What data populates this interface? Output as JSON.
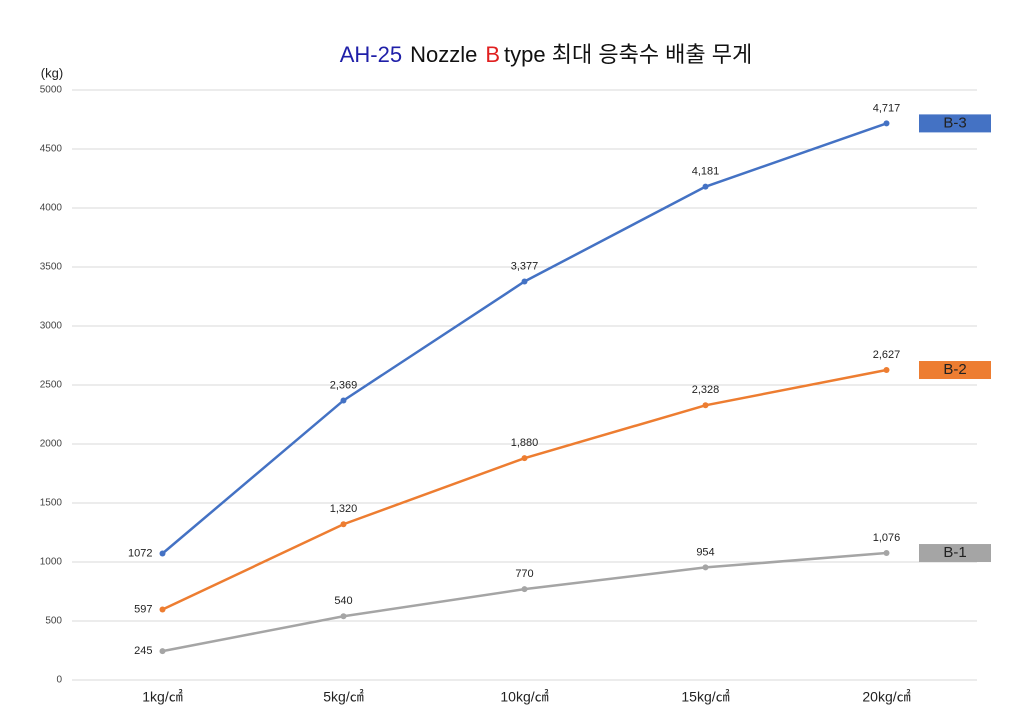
{
  "chart_data": {
    "type": "line",
    "title_parts": [
      {
        "text": "AH-25",
        "color": "#1f1fa8"
      },
      {
        "text": "Nozzle",
        "color": "#111111"
      },
      {
        "text": "B",
        "color": "#e02020"
      },
      {
        "text": "type 최대 응축수 배출 무게",
        "color": "#111111"
      }
    ],
    "y_label": "(kg)",
    "categories": [
      "1kg/㎠",
      "5kg/㎠",
      "10kg/㎠",
      "15kg/㎠",
      "20kg/㎠"
    ],
    "series": [
      {
        "name": "B-3",
        "color": "#4472c4",
        "values": [
          1072,
          2369,
          3377,
          4181,
          4717
        ],
        "value_labels": [
          "1072",
          "2,369",
          "3,377",
          "4,181",
          "4,717"
        ]
      },
      {
        "name": "B-2",
        "color": "#ed7d31",
        "values": [
          597,
          1320,
          1880,
          2328,
          2627
        ],
        "value_labels": [
          "597",
          "1,320",
          "1,880",
          "2,328",
          "2,627"
        ]
      },
      {
        "name": "B-1",
        "color": "#a5a5a5",
        "values": [
          245,
          540,
          770,
          954,
          1076
        ],
        "value_labels": [
          "245",
          "540",
          "770",
          "954",
          "1,076"
        ]
      }
    ],
    "ylim": [
      0,
      5000
    ],
    "yticks": [
      0,
      500,
      1000,
      1500,
      2000,
      2500,
      3000,
      3500,
      4000,
      4500,
      5000
    ],
    "grid": true,
    "legend": "right"
  }
}
